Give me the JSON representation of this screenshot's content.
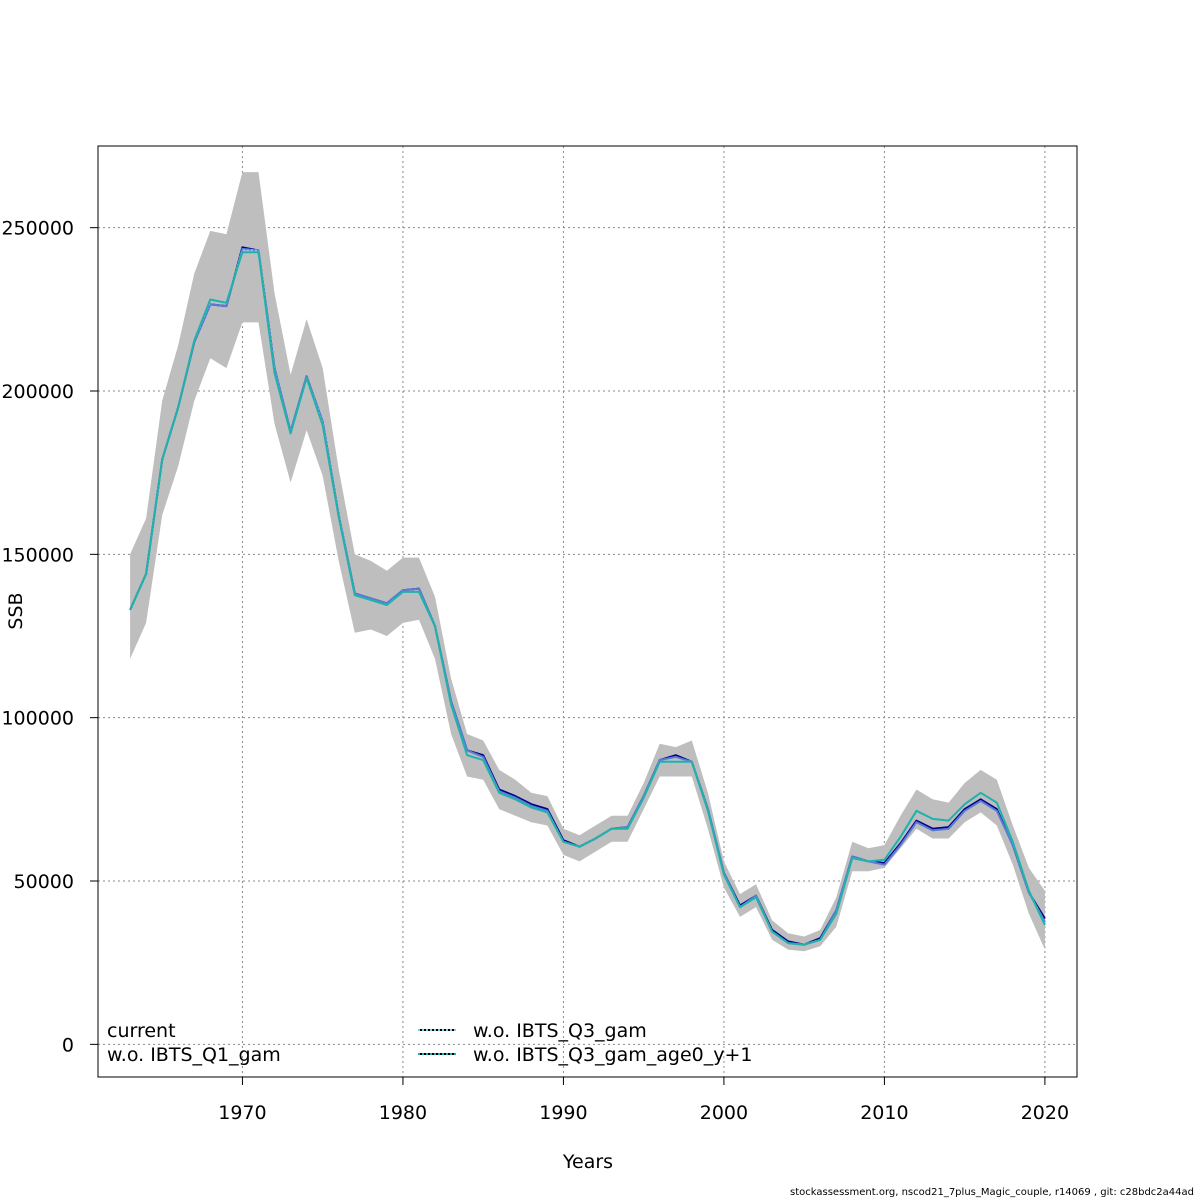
{
  "footer": "stockassessment.org, nscod21_7plus_Magic_couple, r14069 , git: c28bdc2a44ad",
  "chart_data": {
    "type": "line",
    "title": "",
    "xlabel": "Years",
    "ylabel": "SSB",
    "xlim": [
      1961,
      2022
    ],
    "ylim": [
      -10000,
      275000
    ],
    "x_ticks": [
      1970,
      1980,
      1990,
      2000,
      2010,
      2020
    ],
    "y_ticks": [
      0,
      50000,
      100000,
      150000,
      200000,
      250000
    ],
    "x_tick_labels": [
      "1970",
      "1980",
      "1990",
      "2000",
      "2010",
      "2020"
    ],
    "y_tick_labels": [
      "0",
      "50000",
      "100000",
      "150000",
      "200000",
      "250000"
    ],
    "grid": true,
    "legend_position": "bottom",
    "x": [
      1963,
      1964,
      1965,
      1966,
      1967,
      1968,
      1969,
      1970,
      1971,
      1972,
      1973,
      1974,
      1975,
      1976,
      1977,
      1978,
      1979,
      1980,
      1981,
      1982,
      1983,
      1984,
      1985,
      1986,
      1987,
      1988,
      1989,
      1990,
      1991,
      1992,
      1993,
      1994,
      1995,
      1996,
      1997,
      1998,
      1999,
      2000,
      2001,
      2002,
      2003,
      2004,
      2005,
      2006,
      2007,
      2008,
      2009,
      2010,
      2011,
      2012,
      2013,
      2014,
      2015,
      2016,
      2017,
      2018,
      2019,
      2020
    ],
    "confidence_band": {
      "color": "#bebebe",
      "upper": [
        150000,
        161000,
        197000,
        214000,
        236000,
        249000,
        248000,
        267000,
        267000,
        230000,
        205000,
        222000,
        207000,
        176000,
        150000,
        148000,
        145000,
        149000,
        149000,
        137000,
        112000,
        95000,
        93000,
        84000,
        81000,
        77000,
        76000,
        66000,
        64000,
        67000,
        70000,
        70000,
        80000,
        92000,
        91000,
        93000,
        77000,
        56000,
        46000,
        49000,
        38000,
        34000,
        33000,
        35000,
        45000,
        62000,
        60000,
        61000,
        70000,
        78000,
        75000,
        74000,
        80000,
        84000,
        81000,
        67000,
        54000,
        47000
      ],
      "lower": [
        118000,
        129000,
        162000,
        177000,
        197000,
        210000,
        207000,
        221000,
        221000,
        190000,
        172000,
        188000,
        174000,
        148000,
        126000,
        127000,
        125000,
        129000,
        130000,
        118000,
        95000,
        82000,
        81000,
        72000,
        70000,
        68000,
        67000,
        58000,
        56000,
        59000,
        62000,
        62000,
        72000,
        82000,
        82000,
        82000,
        66000,
        48000,
        39000,
        42000,
        32000,
        29000,
        28500,
        30000,
        36000,
        53000,
        53000,
        54000,
        60000,
        66000,
        63000,
        63000,
        68000,
        71000,
        67000,
        55000,
        40000,
        29000
      ]
    },
    "series": [
      {
        "name": "current",
        "color": "#00008b",
        "dash": "solid",
        "values": [
          133000,
          144000,
          179000,
          195000,
          215000,
          226500,
          226000,
          244000,
          243000,
          207000,
          187500,
          204500,
          190500,
          162000,
          138000,
          136500,
          135000,
          139000,
          139500,
          128000,
          105000,
          90000,
          88500,
          78000,
          76000,
          73500,
          72000,
          62500,
          60500,
          63000,
          66000,
          66500,
          76000,
          87000,
          88500,
          86500,
          72000,
          52500,
          42500,
          45500,
          35000,
          31500,
          30500,
          32500,
          41000,
          57500,
          56000,
          55500,
          61500,
          68500,
          66000,
          66500,
          72000,
          75000,
          72000,
          61000,
          46500,
          38500
        ]
      },
      {
        "name": "w.o. IBTS_Q1_gam",
        "color": "#5a7ad6",
        "dash": "solid",
        "values": [
          133000,
          144000,
          179000,
          195000,
          215000,
          226500,
          226000,
          243500,
          243000,
          207000,
          187500,
          204500,
          190500,
          162000,
          138000,
          136500,
          135000,
          139000,
          139500,
          128000,
          105000,
          90000,
          88000,
          77500,
          75500,
          73000,
          71500,
          62000,
          60500,
          63000,
          66000,
          66500,
          76000,
          87000,
          88000,
          86500,
          72000,
          52500,
          42000,
          45500,
          34500,
          31000,
          30500,
          32000,
          41000,
          57500,
          56000,
          55000,
          61000,
          68000,
          65500,
          66000,
          71500,
          74500,
          71500,
          61000,
          46500,
          37500
        ]
      },
      {
        "name": "w.o. IBTS_Q3_gam",
        "color": "#87ceeb",
        "dash": "dotted",
        "values": [
          133000,
          144000,
          179000,
          195000,
          215500,
          227500,
          227000,
          243000,
          243000,
          206000,
          187000,
          204000,
          190000,
          162000,
          137500,
          136000,
          134500,
          138500,
          138500,
          128000,
          104000,
          88500,
          87000,
          77000,
          75000,
          72500,
          71000,
          62000,
          60500,
          63000,
          66000,
          66000,
          75500,
          86500,
          86500,
          86500,
          71500,
          52000,
          42000,
          45000,
          34500,
          31000,
          30500,
          32000,
          40000,
          57000,
          56000,
          56500,
          63500,
          71500,
          69000,
          68500,
          73500,
          77000,
          74000,
          62000,
          47000,
          36500
        ]
      },
      {
        "name": "w.o. IBTS_Q3_gam_age0_y+1",
        "color": "#20b2aa",
        "dash": "solid",
        "values": [
          133000,
          144000,
          179000,
          195000,
          215500,
          228000,
          227000,
          242500,
          242500,
          205500,
          187000,
          204000,
          189500,
          161500,
          137500,
          136000,
          134500,
          138500,
          138500,
          128000,
          104000,
          88500,
          87000,
          77000,
          75000,
          72500,
          71000,
          62000,
          60500,
          63000,
          66000,
          66000,
          75500,
          86500,
          86500,
          86500,
          71500,
          52000,
          42000,
          45000,
          34500,
          31000,
          30500,
          32000,
          40000,
          57000,
          56000,
          56500,
          63500,
          71500,
          69000,
          68500,
          73500,
          77000,
          74000,
          62000,
          47000,
          36500
        ]
      }
    ]
  }
}
